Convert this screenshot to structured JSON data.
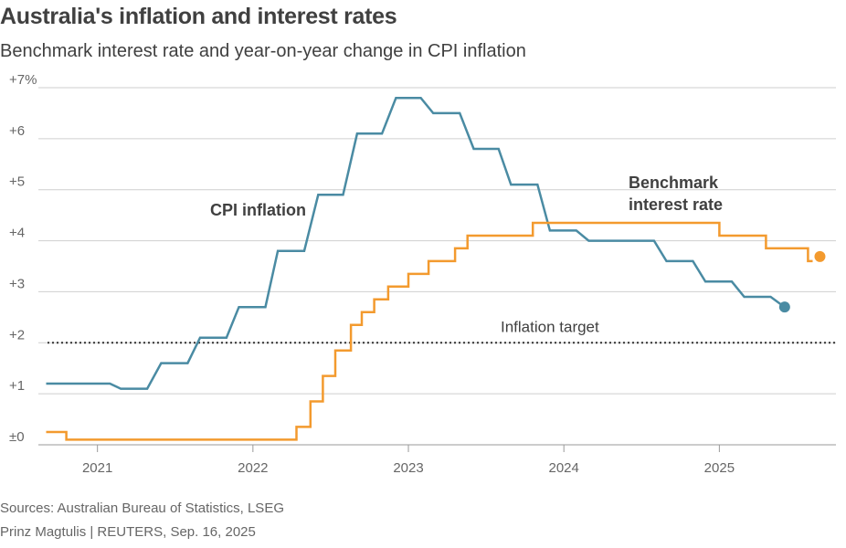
{
  "header": {
    "title": "Australia's inflation and interest rates",
    "subtitle": "Benchmark interest rate and year-on-year change in CPI inflation"
  },
  "footer": {
    "sources": "Sources: Australian Bureau of Statistics, LSEG",
    "credit": "Prinz Magtulis | REUTERS, Sep. 16, 2025"
  },
  "colors": {
    "cpi": "#4a8ba3",
    "rate": "#f39a2e",
    "grid": "#cfcfcf",
    "target": "#333333",
    "axis": "#999999"
  },
  "chart_data": {
    "type": "line",
    "title": "Australia's inflation and interest rates",
    "subtitle": "Benchmark interest rate and year-on-year change in CPI inflation",
    "xlim": [
      2020.62,
      2025.75
    ],
    "ylim": [
      0,
      7
    ],
    "y_ticks": [
      {
        "value": 0,
        "label": "±0"
      },
      {
        "value": 1,
        "label": "+1"
      },
      {
        "value": 2,
        "label": "+2"
      },
      {
        "value": 3,
        "label": "+3"
      },
      {
        "value": 4,
        "label": "+4"
      },
      {
        "value": 5,
        "label": "+5"
      },
      {
        "value": 6,
        "label": "+6"
      },
      {
        "value": 7,
        "label": "+7%"
      }
    ],
    "x_ticks": [
      {
        "value": 2021,
        "label": "2021"
      },
      {
        "value": 2022,
        "label": "2022"
      },
      {
        "value": 2023,
        "label": "2023"
      },
      {
        "value": 2024,
        "label": "2024"
      },
      {
        "value": 2025,
        "label": "2025"
      }
    ],
    "reference_line": {
      "value": 2,
      "label": "Inflation target",
      "style": "dotted"
    },
    "series": [
      {
        "name": "CPI inflation",
        "label": "CPI inflation",
        "color_key": "cpi",
        "end_marker": true,
        "points": [
          [
            2020.67,
            1.2
          ],
          [
            2020.92,
            1.2
          ],
          [
            2021.08,
            1.2
          ],
          [
            2021.15,
            1.1
          ],
          [
            2021.32,
            1.1
          ],
          [
            2021.41,
            1.6
          ],
          [
            2021.58,
            1.6
          ],
          [
            2021.66,
            2.1
          ],
          [
            2021.83,
            2.1
          ],
          [
            2021.91,
            2.7
          ],
          [
            2022.08,
            2.7
          ],
          [
            2022.16,
            3.8
          ],
          [
            2022.33,
            3.8
          ],
          [
            2022.42,
            4.9
          ],
          [
            2022.58,
            4.9
          ],
          [
            2022.67,
            6.1
          ],
          [
            2022.83,
            6.1
          ],
          [
            2022.92,
            6.8
          ],
          [
            2023.08,
            6.8
          ],
          [
            2023.16,
            6.5
          ],
          [
            2023.33,
            6.5
          ],
          [
            2023.42,
            5.8
          ],
          [
            2023.58,
            5.8
          ],
          [
            2023.66,
            5.1
          ],
          [
            2023.83,
            5.1
          ],
          [
            2023.91,
            4.2
          ],
          [
            2024.08,
            4.2
          ],
          [
            2024.16,
            4.0
          ],
          [
            2024.33,
            4.0
          ],
          [
            2024.58,
            4.0
          ],
          [
            2024.66,
            3.6
          ],
          [
            2024.83,
            3.6
          ],
          [
            2024.91,
            3.2
          ],
          [
            2025.08,
            3.2
          ],
          [
            2025.16,
            2.9
          ],
          [
            2025.33,
            2.9
          ],
          [
            2025.42,
            2.7
          ]
        ]
      },
      {
        "name": "Benchmark interest rate",
        "label": [
          "Benchmark",
          "interest rate"
        ],
        "color_key": "rate",
        "end_marker": true,
        "step_points": [
          [
            2020.67,
            0.25
          ],
          [
            2020.8,
            0.1
          ],
          [
            2022.28,
            0.35
          ],
          [
            2022.37,
            0.85
          ],
          [
            2022.45,
            1.35
          ],
          [
            2022.53,
            1.85
          ],
          [
            2022.63,
            2.35
          ],
          [
            2022.7,
            2.6
          ],
          [
            2022.78,
            2.85
          ],
          [
            2022.87,
            3.1
          ],
          [
            2023.0,
            3.35
          ],
          [
            2023.13,
            3.6
          ],
          [
            2023.3,
            3.85
          ],
          [
            2023.38,
            4.1
          ],
          [
            2023.8,
            4.35
          ],
          [
            2025.0,
            4.1
          ],
          [
            2025.3,
            3.85
          ],
          [
            2025.57,
            3.6
          ],
          [
            2025.6,
            3.6
          ]
        ]
      }
    ]
  }
}
